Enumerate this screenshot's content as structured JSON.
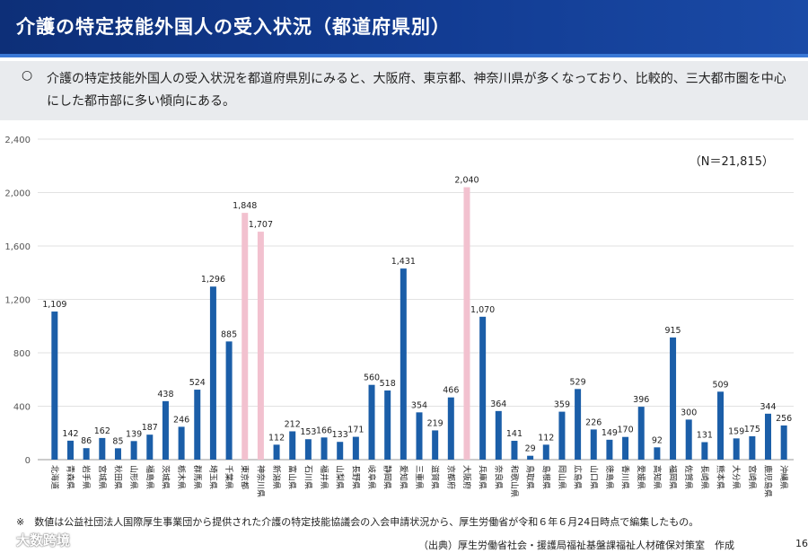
{
  "header": {
    "title": "介護の特定技能外国人の受入状況（都道府県別）"
  },
  "summary": {
    "bullet": "○",
    "text": "介護の特定技能外国人の受入状況を都道府県別にみると、大阪府、東京都、神奈川県が多くなっており、比較的、三大都市圏を中心にした都市部に多い傾向にある。"
  },
  "chart_data": {
    "type": "bar",
    "title": "",
    "annotation": "（N＝21,815）",
    "xlabel": "",
    "ylabel": "",
    "ylim": [
      0,
      2400
    ],
    "yticks": [
      0,
      400,
      800,
      1200,
      1600,
      2000,
      2400
    ],
    "ytick_labels": [
      "0",
      "400",
      "800",
      "1,200",
      "1,600",
      "2,000",
      "2,400"
    ],
    "grid": true,
    "colors": {
      "default": "#1b5ea8",
      "highlight": "#f2c1cf"
    },
    "categories": [
      "北海道",
      "青森県",
      "岩手県",
      "宮城県",
      "秋田県",
      "山形県",
      "福島県",
      "茨城県",
      "栃木県",
      "群馬県",
      "埼玉県",
      "千葉県",
      "東京都",
      "神奈川県",
      "新潟県",
      "富山県",
      "石川県",
      "福井県",
      "山梨県",
      "長野県",
      "岐阜県",
      "静岡県",
      "愛知県",
      "三重県",
      "滋賀県",
      "京都府",
      "大阪府",
      "兵庫県",
      "奈良県",
      "和歌山県",
      "鳥取県",
      "島根県",
      "岡山県",
      "広島県",
      "山口県",
      "徳島県",
      "香川県",
      "愛媛県",
      "高知県",
      "福岡県",
      "佐賀県",
      "長崎県",
      "熊本県",
      "大分県",
      "宮崎県",
      "鹿児島県",
      "沖縄県"
    ],
    "values": [
      1109,
      142,
      86,
      162,
      85,
      139,
      187,
      438,
      246,
      524,
      1296,
      885,
      1848,
      1707,
      112,
      212,
      153,
      166,
      133,
      171,
      560,
      518,
      1431,
      354,
      219,
      466,
      2040,
      1070,
      364,
      141,
      29,
      112,
      359,
      529,
      226,
      149,
      170,
      396,
      92,
      915,
      300,
      131,
      509,
      159,
      175,
      344,
      256
    ],
    "value_labels": [
      "1,109",
      "142",
      "86",
      "162",
      "85",
      "139",
      "187",
      "438",
      "246",
      "524",
      "1,296",
      "885",
      "1,848",
      "1,707",
      "112",
      "212",
      "153",
      "166",
      "133",
      "171",
      "560",
      "518",
      "1,431",
      "354",
      "219",
      "466",
      "2,040",
      "1,070",
      "364",
      "141",
      "29",
      "112",
      "359",
      "529",
      "226",
      "149",
      "170",
      "396",
      "92",
      "915",
      "300",
      "131",
      "509",
      "159",
      "175",
      "344",
      "256"
    ],
    "highlighted": [
      "東京都",
      "神奈川県",
      "大阪府"
    ]
  },
  "footer": {
    "note": "※　数値は公益社団法人国際厚生事業団から提供された介護の特定技能協議会の入会申請状況から、厚生労働省が令和６年６月24日時点で編集したもの。",
    "source": "（出典）厚生労働省社会・援護局福祉基盤課福祉人材確保対策室　作成",
    "page": "16"
  },
  "watermark": {
    "text": "大数跨境"
  }
}
